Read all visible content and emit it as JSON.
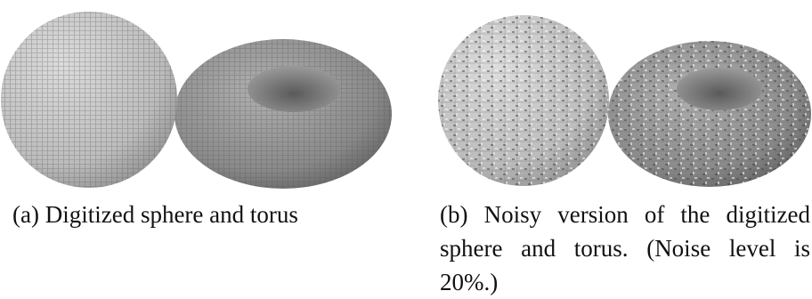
{
  "figures": [
    {
      "label": "(a)",
      "caption": "Digitized sphere and torus"
    },
    {
      "label": "(b)",
      "caption": "Noisy version of the digitized sphere and torus. (Noise level is 20%.)"
    }
  ]
}
